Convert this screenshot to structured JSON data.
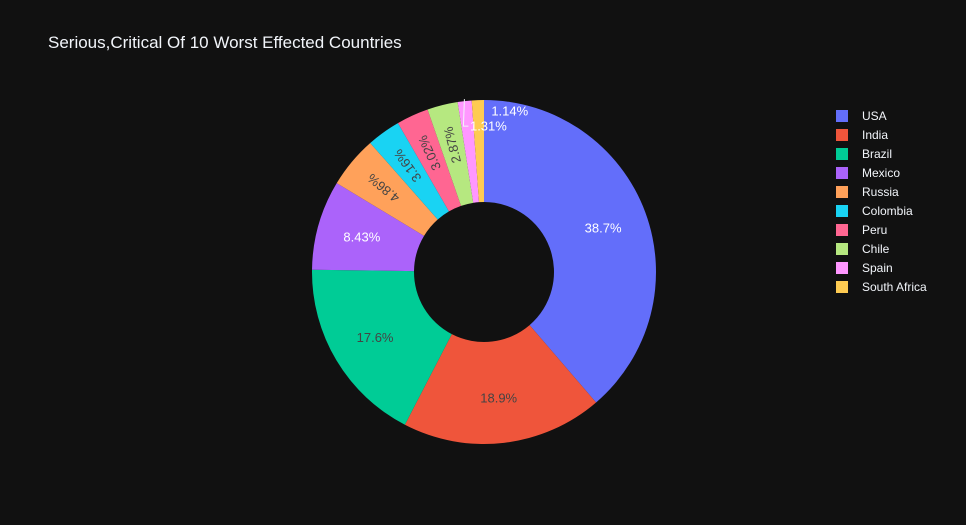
{
  "chart_data": {
    "type": "pie",
    "hole": true,
    "title": "Serious,Critical Of 10 Worst Effected Countries",
    "labels": [
      "USA",
      "India",
      "Brazil",
      "Mexico",
      "Russia",
      "Colombia",
      "Peru",
      "Chile",
      "Spain",
      "South Africa"
    ],
    "values": [
      38.7,
      18.9,
      17.6,
      8.43,
      4.86,
      3.16,
      3.02,
      2.87,
      1.31,
      1.14
    ],
    "value_labels": [
      "38.7%",
      "18.9%",
      "17.6%",
      "8.43%",
      "4.86%",
      "3.16%",
      "3.02%",
      "2.87%",
      "1.31%",
      "1.14%"
    ],
    "colors": [
      "#636efa",
      "#EF553B",
      "#00cc96",
      "#ab63fa",
      "#FFA15A",
      "#19d3f3",
      "#FF6692",
      "#B6E880",
      "#FF97FF",
      "#FECB52"
    ],
    "label_colors": [
      "#ffffff",
      "#444444",
      "#444444",
      "#ffffff",
      "#444444",
      "#444444",
      "#444444",
      "#444444",
      "#ffffff",
      "#ffffff"
    ],
    "legend_position": "right"
  }
}
